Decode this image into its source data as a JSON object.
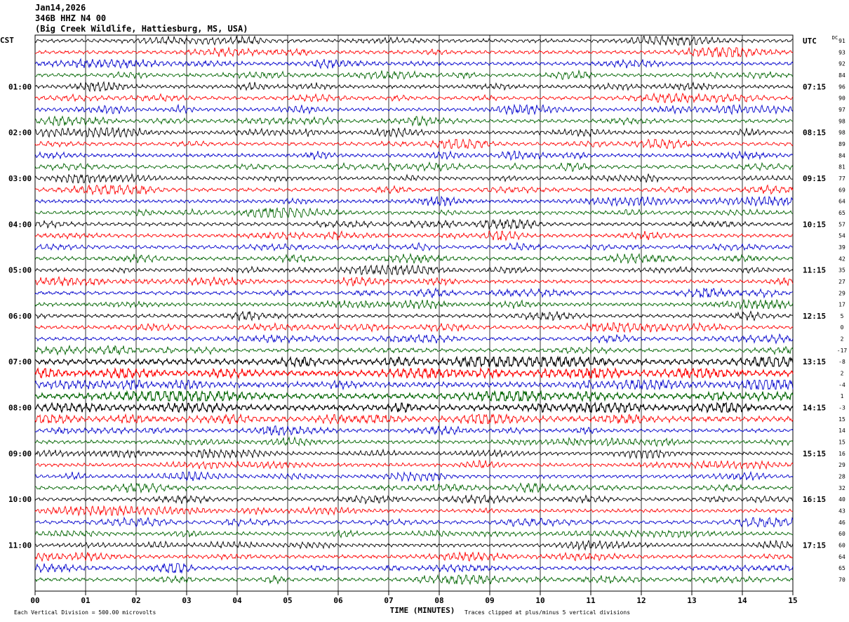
{
  "header": {
    "date": "Jan14,2026",
    "station": "346B HHZ N4 00",
    "location": "(Big Creek Wildlife, Hattiesburg, MS, USA)"
  },
  "footer": {
    "scale_note": "Each Vertical Division =  500.00 microvolts",
    "clip_note": "Traces clipped at plus/minus 5 vertical divisions"
  },
  "chart_data": {
    "type": "line",
    "title": "",
    "xlabel": "TIME (MINUTES)",
    "left_axis_label": "CST",
    "right_axis_label": "UTC",
    "dc_label": "DC",
    "xlim": [
      0,
      15
    ],
    "x_ticks": [
      "00",
      "01",
      "02",
      "03",
      "04",
      "05",
      "06",
      "07",
      "08",
      "09",
      "10",
      "11",
      "12",
      "13",
      "14",
      "15"
    ],
    "grid": "vertical lines each minute",
    "trace_colors": [
      "#000000",
      "#ff0000",
      "#0000cc",
      "#006400"
    ],
    "left_hour_labels": [
      "01:00",
      "02:00",
      "03:00",
      "04:00",
      "05:00",
      "06:00",
      "07:00",
      "08:00",
      "09:00",
      "10:00",
      "11:00"
    ],
    "right_hour_labels": [
      "UTC",
      "07:15",
      "08:15",
      "09:15",
      "10:15",
      "11:15",
      "12:15",
      "13:15",
      "14:15",
      "15:15",
      "16:15",
      "17:15"
    ],
    "dc_values": [
      91,
      93,
      92,
      84,
      96,
      90,
      97,
      98,
      98,
      89,
      84,
      81,
      77,
      69,
      64,
      65,
      57,
      54,
      39,
      42,
      35,
      27,
      29,
      17,
      5,
      0,
      2,
      -17,
      -8,
      2,
      -4,
      1,
      -3,
      15,
      14,
      15,
      16,
      29,
      28,
      32,
      40,
      43,
      46,
      60,
      60,
      64,
      65,
      70
    ],
    "traces_per_hour": 4,
    "trace_minutes": 15,
    "num_traces": 48
  }
}
